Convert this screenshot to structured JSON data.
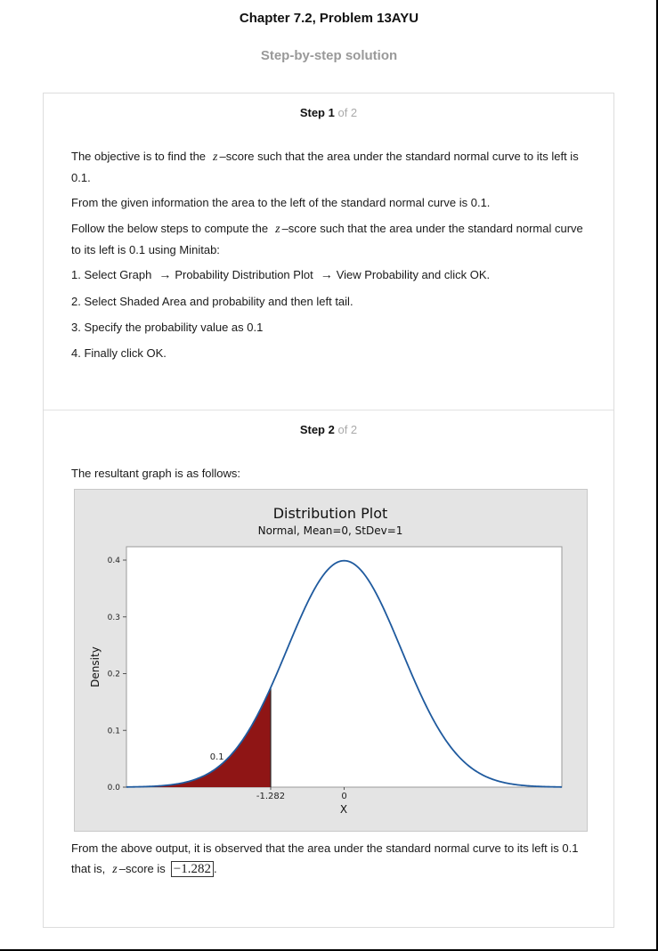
{
  "header": {
    "title": "Chapter 7.2, Problem 13AYU",
    "subtitle": "Step-by-step solution"
  },
  "step1": {
    "num": "Step 1",
    "of": "of 2",
    "p1_a": "The objective is to find the",
    "p1_z": "z",
    "p1_b": "–score such that the area under the standard normal curve to its left is 0.1.",
    "p2": "From the given information the area to the left of the standard normal curve is 0.1.",
    "p3_a": "Follow the below steps to compute the",
    "p3_z": "z",
    "p3_b": "–score such that the area under the standard normal curve to its left is 0.1 using Minitab:",
    "s1_a": "1. Select Graph",
    "s1_b": "Probability Distribution Plot",
    "s1_c": "View Probability and click OK.",
    "s2": "2. Select Shaded Area and probability and then left tail.",
    "s3": "3. Specify the probability value as 0.1",
    "s4": "4. Finally click OK."
  },
  "step2": {
    "num": "Step 2",
    "of": "of 2",
    "intro": "The resultant graph is as follows:",
    "concl_a": "From the above output, it is observed that the area under the standard normal curve to its left is 0.1 that is,",
    "concl_z": "z",
    "concl_b": "–score is",
    "answer": "−1.282",
    "concl_end": "."
  },
  "icons": {
    "arrow": "right-arrow-icon"
  },
  "chart_data": {
    "type": "area",
    "title": "Distribution Plot",
    "subtitle": "Normal, Mean=0, StDev=1",
    "xlabel": "X",
    "ylabel": "Density",
    "xlim": [
      -3.8,
      3.8
    ],
    "ylim": [
      0,
      0.4
    ],
    "yticks": [
      "0.0",
      "0.1",
      "0.2",
      "0.3",
      "0.4"
    ],
    "xtick_labels": [
      {
        "value": -1.282,
        "label": "-1.282"
      },
      {
        "value": 0,
        "label": "0"
      }
    ],
    "series": [
      {
        "type": "line",
        "distribution": "normal",
        "mean": 0,
        "sd": 1,
        "color": "#1f5a9e"
      }
    ],
    "shaded_region": {
      "from": -3.8,
      "to": -1.282,
      "color": "#8f1515",
      "area_label": "0.1"
    },
    "grid": false
  }
}
